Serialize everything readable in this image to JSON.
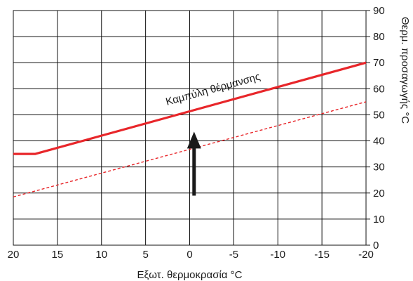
{
  "chart_data": {
    "type": "line",
    "xlabel": "Εξωτ. θερμοκρασία °C",
    "ylabel": "Θερμ. προσαγωγής °C",
    "xlim": [
      20,
      -20
    ],
    "ylim": [
      0,
      90
    ],
    "x_ticks": [
      20,
      15,
      10,
      5,
      0,
      -5,
      -10,
      -15,
      -20
    ],
    "x_tick_labels": [
      "20",
      "15",
      "10",
      "5",
      "0",
      "-5",
      "-10",
      "-15",
      "-20"
    ],
    "y_ticks": [
      0,
      10,
      20,
      30,
      40,
      50,
      60,
      70,
      80,
      90
    ],
    "y_tick_labels": [
      "0",
      "10",
      "20",
      "30",
      "40",
      "50",
      "60",
      "70",
      "80",
      "90"
    ],
    "grid": true,
    "y_axis_side": "right",
    "series": [
      {
        "name": "Καμπύλη θέρμανσης",
        "style": "solid",
        "color": "#e8262a",
        "points": [
          [
            20,
            35
          ],
          [
            17.5,
            35
          ],
          [
            -20,
            70
          ]
        ]
      },
      {
        "style": "dashed",
        "color": "#e8262a",
        "points": [
          [
            20,
            18.5
          ],
          [
            -20,
            55
          ]
        ]
      }
    ],
    "annotations": [
      {
        "type": "arrow",
        "x": -0.5,
        "from_y": 19,
        "to_y": 43,
        "color": "#1a1a1a"
      }
    ]
  }
}
